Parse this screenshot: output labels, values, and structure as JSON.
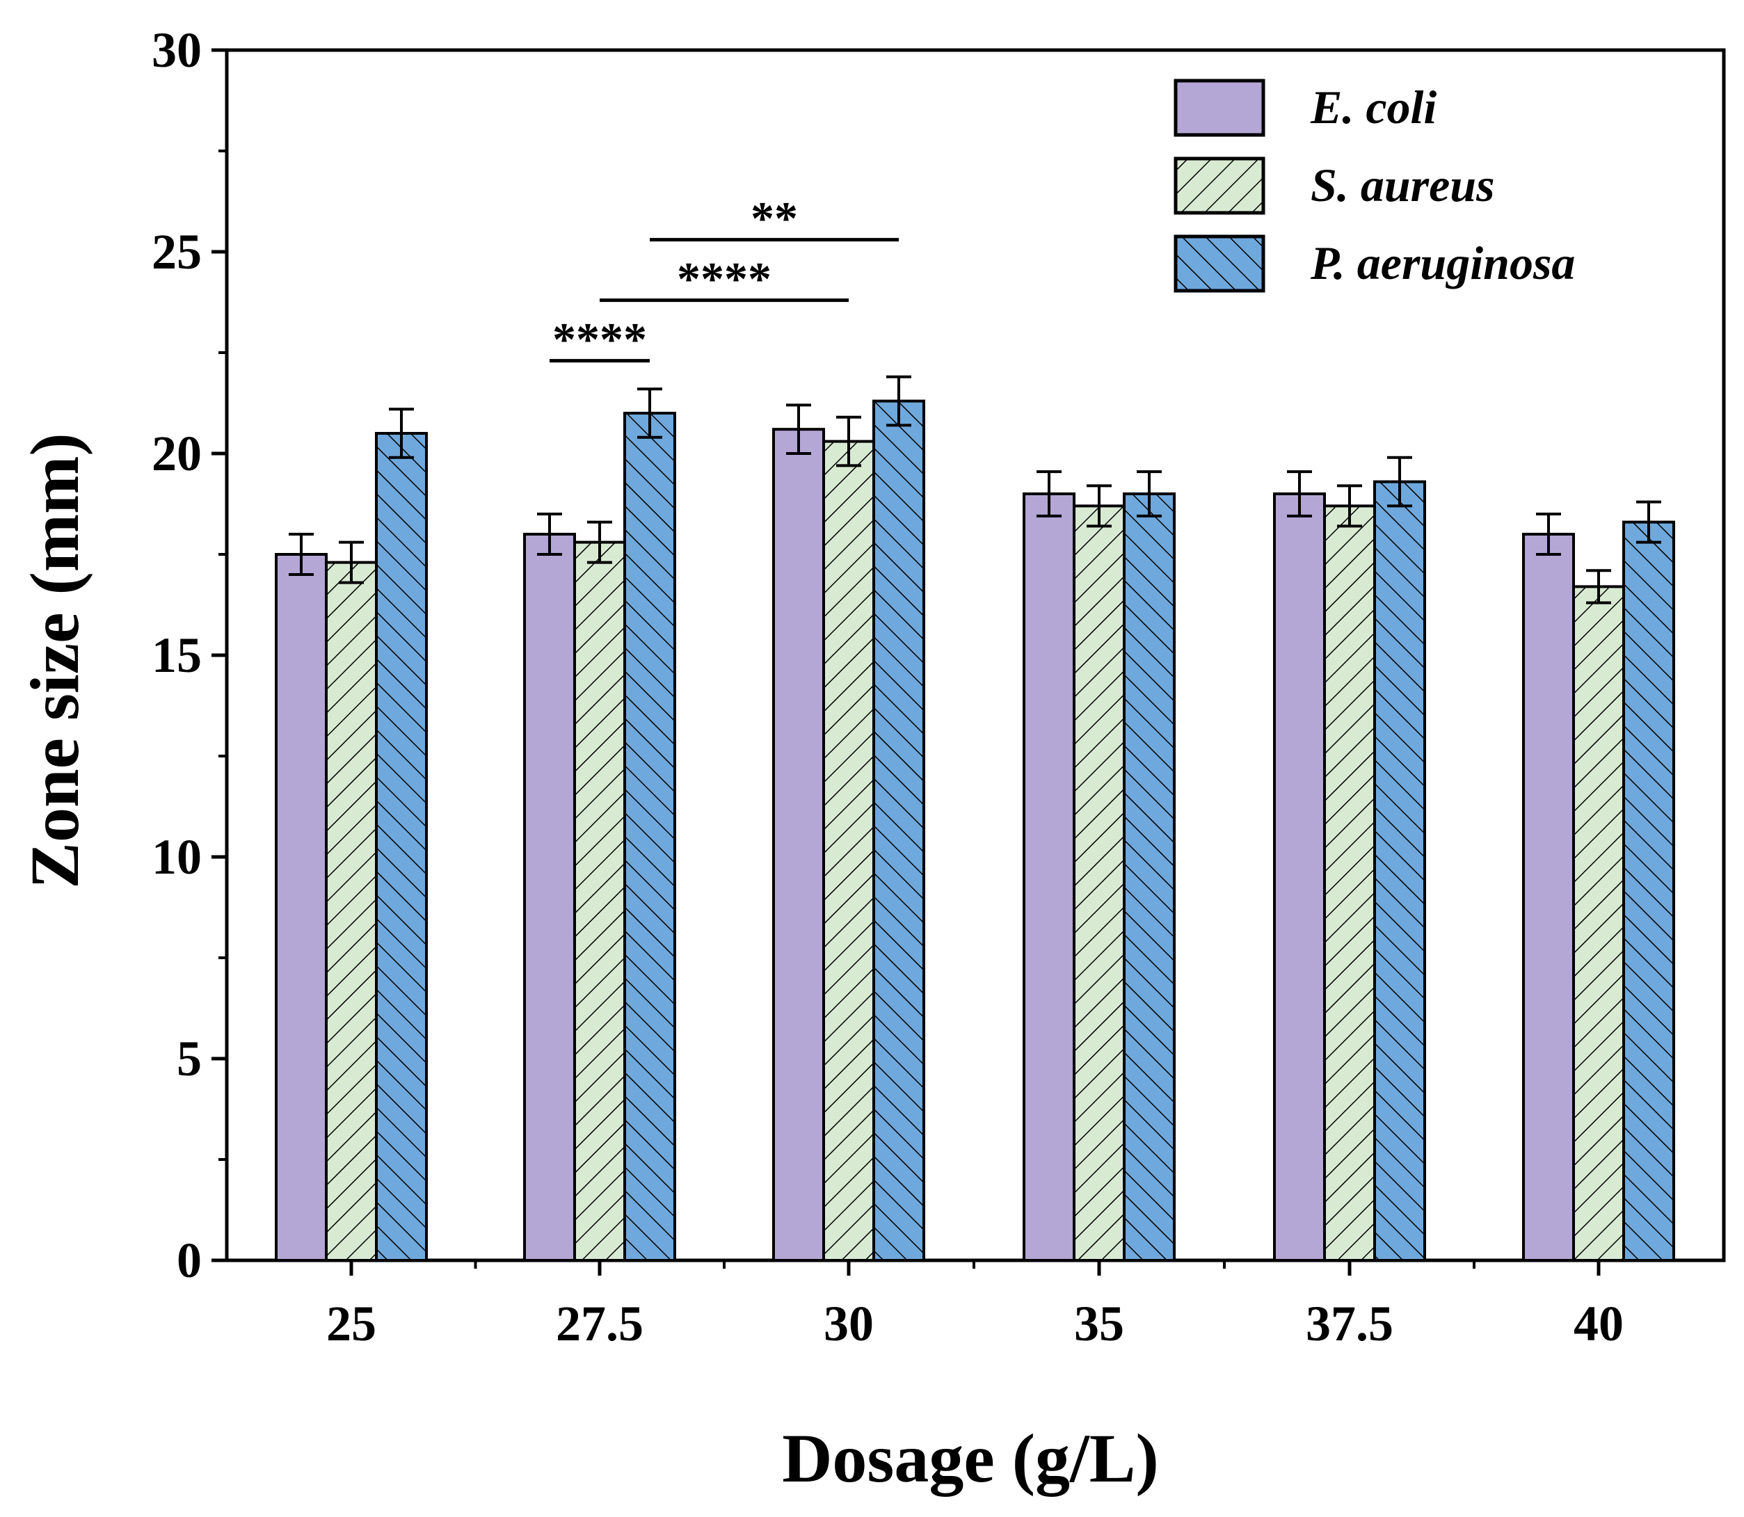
{
  "chart_data": {
    "type": "bar",
    "title": "",
    "xlabel": "Dosage (g/L)",
    "ylabel": "Zone size (mm)",
    "ylim": [
      0,
      30
    ],
    "yticks": [
      0,
      5,
      10,
      15,
      20,
      25,
      30
    ],
    "categories": [
      "25",
      "27.5",
      "30",
      "35",
      "37.5",
      "40"
    ],
    "series": [
      {
        "name": "E. coli",
        "color": "#b4a7d6",
        "pattern": "none",
        "values": [
          17.5,
          18.0,
          20.6,
          19.0,
          19.0,
          18.0
        ],
        "errors": [
          0.5,
          0.5,
          0.6,
          0.55,
          0.55,
          0.5
        ]
      },
      {
        "name": "S. aureus",
        "color": "#d9ead3",
        "pattern": "forward-hatch",
        "values": [
          17.3,
          17.8,
          20.3,
          18.7,
          18.7,
          16.7
        ],
        "errors": [
          0.5,
          0.5,
          0.6,
          0.5,
          0.5,
          0.4
        ]
      },
      {
        "name": "P. aeruginosa",
        "color": "#6fa8dc",
        "pattern": "back-hatch",
        "values": [
          20.5,
          21.0,
          21.3,
          19.0,
          19.3,
          18.3
        ],
        "errors": [
          0.6,
          0.6,
          0.6,
          0.55,
          0.6,
          0.5
        ]
      }
    ],
    "significance": [
      {
        "label": "****",
        "from_category": 1,
        "from_series": 0,
        "to_category": 1,
        "to_series": 2,
        "y": 22.3
      },
      {
        "label": "****",
        "from_category": 1,
        "from_series": 1,
        "to_category": 2,
        "to_series": 1,
        "y": 23.8
      },
      {
        "label": "**",
        "from_category": 1,
        "from_series": 2,
        "to_category": 2,
        "to_series": 2,
        "y": 25.3
      }
    ],
    "legend_position": "top-right"
  }
}
